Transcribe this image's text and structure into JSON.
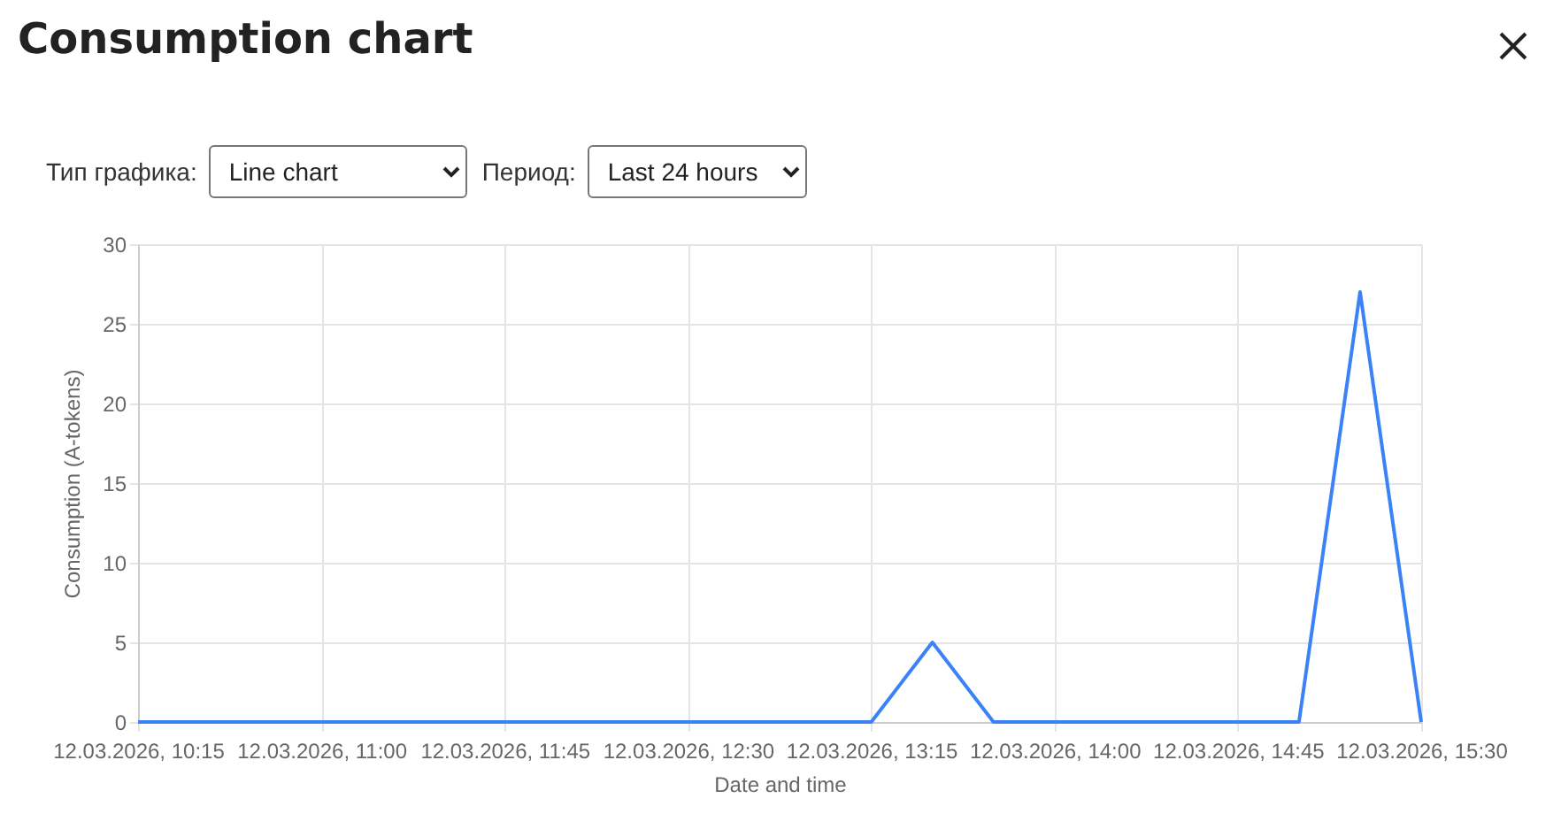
{
  "chart_data": {
    "type": "line",
    "title": "Consumption chart",
    "annotations": [
      "Тип графика:",
      "Line chart",
      "Период:",
      "Last 24 hours"
    ],
    "xlabel": "Date and time",
    "ylabel": "Consumption (A-tokens)",
    "categories": [
      "12.03.2026, 10:15",
      null,
      null,
      "12.03.2026, 11:00",
      null,
      null,
      "12.03.2026, 11:45",
      null,
      null,
      "12.03.2026, 12:30",
      null,
      null,
      "12.03.2026, 13:15",
      null,
      null,
      "12.03.2026, 14:00",
      null,
      null,
      "12.03.2026, 14:45",
      null,
      null,
      "12.03.2026, 15:30"
    ],
    "series": [
      {
        "color": "#3b82f6",
        "values": [
          0,
          0,
          0,
          0,
          0,
          0,
          0,
          0,
          0,
          0,
          0,
          0,
          0,
          5,
          0,
          0,
          0,
          0,
          0,
          0,
          27,
          0
        ]
      }
    ],
    "ylim": [
      0,
      30
    ],
    "yticks": [
      0,
      5,
      10,
      15,
      20,
      25,
      30
    ],
    "grid": true,
    "legend": false,
    "marker": "none",
    "line_style": "solid"
  }
}
